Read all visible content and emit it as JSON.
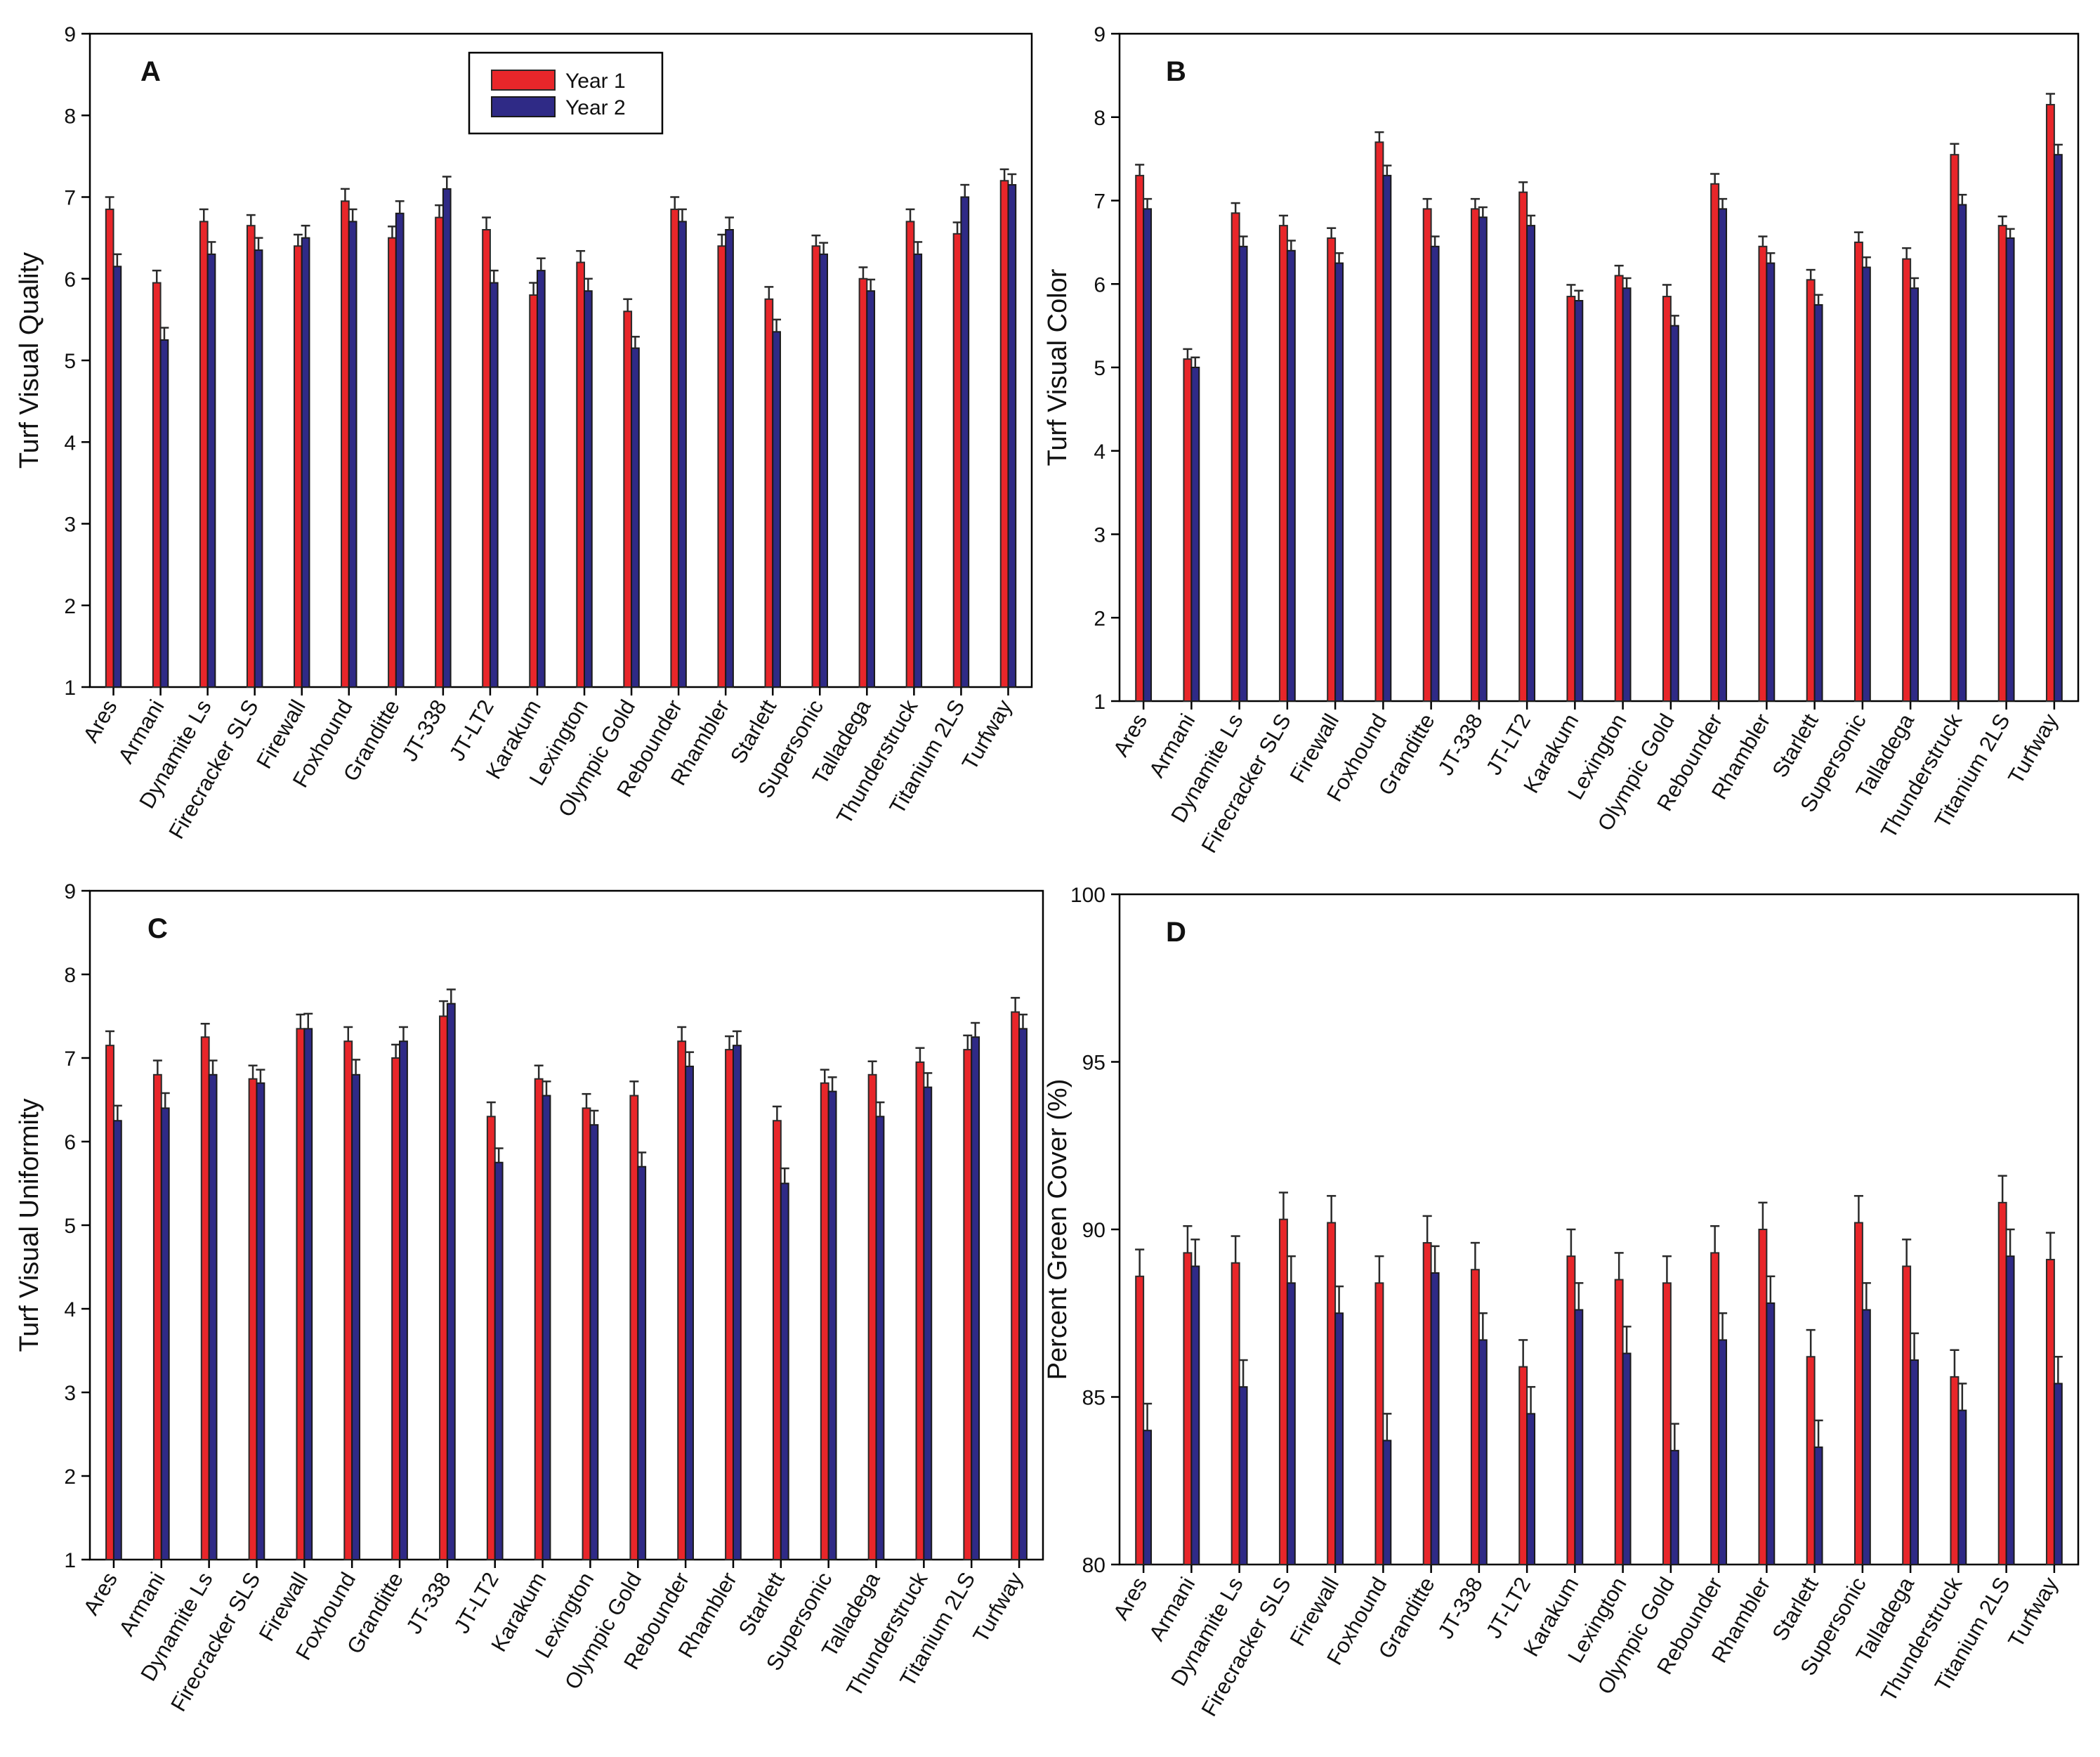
{
  "colors": {
    "year1": "#e8262a",
    "year2": "#2f2a86"
  },
  "chart_data": [
    {
      "type": "bar",
      "panel": "A",
      "ylabel": "Turf Visual Quality",
      "ylim": [
        1,
        9
      ],
      "yticks": [
        1,
        2,
        3,
        4,
        5,
        6,
        7,
        8,
        9
      ],
      "legend": {
        "position": "top-center",
        "entries": [
          "Year 1",
          "Year 2"
        ]
      },
      "categories": [
        "Ares",
        "Armani",
        "Dynamite Ls",
        "Firecracker SLS",
        "Firewall",
        "Foxhound",
        "Granditte",
        "JT-338",
        "JT-LT2",
        "Karakum",
        "Lexington",
        "Olympic Gold",
        "Rebounder",
        "Rhambler",
        "Starlett",
        "Supersonic",
        "Talladega",
        "Thunderstruck",
        "Titanium 2LS",
        "Turfway"
      ],
      "series": [
        {
          "name": "Year 1",
          "values": [
            6.85,
            5.95,
            6.7,
            6.65,
            6.4,
            6.95,
            6.5,
            6.75,
            6.6,
            5.8,
            6.2,
            5.6,
            6.85,
            6.4,
            5.75,
            6.4,
            6.0,
            6.7,
            6.55,
            7.2
          ],
          "errors": [
            0.15,
            0.15,
            0.15,
            0.13,
            0.14,
            0.15,
            0.14,
            0.15,
            0.15,
            0.15,
            0.14,
            0.15,
            0.15,
            0.14,
            0.15,
            0.13,
            0.14,
            0.15,
            0.14,
            0.14
          ]
        },
        {
          "name": "Year 2",
          "values": [
            6.15,
            5.25,
            6.3,
            6.35,
            6.5,
            6.7,
            6.8,
            7.1,
            5.95,
            6.1,
            5.85,
            5.15,
            6.7,
            6.6,
            5.35,
            6.3,
            5.85,
            6.3,
            7.0,
            7.15
          ],
          "errors": [
            0.15,
            0.15,
            0.15,
            0.15,
            0.15,
            0.15,
            0.15,
            0.15,
            0.15,
            0.15,
            0.15,
            0.14,
            0.15,
            0.15,
            0.15,
            0.14,
            0.14,
            0.15,
            0.15,
            0.13
          ]
        }
      ]
    },
    {
      "type": "bar",
      "panel": "B",
      "ylabel": "Turf Visual Color",
      "ylim": [
        1,
        9
      ],
      "yticks": [
        1,
        2,
        3,
        4,
        5,
        6,
        7,
        8,
        9
      ],
      "categories": [
        "Ares",
        "Armani",
        "Dynamite Ls",
        "Firecracker SLS",
        "Firewall",
        "Foxhound",
        "Granditte",
        "JT-338",
        "JT-LT2",
        "Karakum",
        "Lexington",
        "Olympic Gold",
        "Rebounder",
        "Rhambler",
        "Starlett",
        "Supersonic",
        "Talladega",
        "Thunderstruck",
        "Titanium 2LS",
        "Turfway"
      ],
      "series": [
        {
          "name": "Year 1",
          "values": [
            7.3,
            5.1,
            6.85,
            6.7,
            6.55,
            7.7,
            6.9,
            6.9,
            7.1,
            5.85,
            6.1,
            5.85,
            7.2,
            6.45,
            6.05,
            6.5,
            6.3,
            7.55,
            6.7,
            8.15
          ],
          "errors": [
            0.13,
            0.12,
            0.12,
            0.12,
            0.12,
            0.12,
            0.12,
            0.12,
            0.12,
            0.14,
            0.12,
            0.14,
            0.12,
            0.12,
            0.12,
            0.12,
            0.13,
            0.13,
            0.11,
            0.13
          ]
        },
        {
          "name": "Year 2",
          "values": [
            6.9,
            5.0,
            6.45,
            6.4,
            6.25,
            7.3,
            6.45,
            6.8,
            6.7,
            5.8,
            5.95,
            5.5,
            6.9,
            6.25,
            5.75,
            6.2,
            5.95,
            6.95,
            6.55,
            7.55
          ],
          "errors": [
            0.12,
            0.12,
            0.12,
            0.12,
            0.12,
            0.12,
            0.12,
            0.12,
            0.12,
            0.12,
            0.12,
            0.12,
            0.12,
            0.12,
            0.12,
            0.12,
            0.12,
            0.12,
            0.11,
            0.12
          ]
        }
      ]
    },
    {
      "type": "bar",
      "panel": "C",
      "ylabel": "Turf Visual Uniformity",
      "ylim": [
        1,
        9
      ],
      "yticks": [
        1,
        2,
        3,
        4,
        5,
        6,
        7,
        8,
        9
      ],
      "categories": [
        "Ares",
        "Armani",
        "Dynamite Ls",
        "Firecracker SLS",
        "Firewall",
        "Foxhound",
        "Granditte",
        "JT-338",
        "JT-LT2",
        "Karakum",
        "Lexington",
        "Olympic Gold",
        "Rebounder",
        "Rhambler",
        "Starlett",
        "Supersonic",
        "Talladega",
        "Thunderstruck",
        "Titanium 2LS",
        "Turfway"
      ],
      "series": [
        {
          "name": "Year 1",
          "values": [
            7.15,
            6.8,
            7.25,
            6.75,
            7.35,
            7.2,
            7.0,
            7.5,
            6.3,
            6.75,
            6.4,
            6.55,
            7.2,
            7.1,
            6.25,
            6.7,
            6.8,
            6.95,
            7.1,
            7.55
          ],
          "errors": [
            0.17,
            0.17,
            0.16,
            0.16,
            0.17,
            0.17,
            0.16,
            0.18,
            0.17,
            0.16,
            0.17,
            0.17,
            0.17,
            0.16,
            0.17,
            0.16,
            0.16,
            0.17,
            0.17,
            0.17
          ]
        },
        {
          "name": "Year 2",
          "values": [
            6.25,
            6.4,
            6.8,
            6.7,
            7.35,
            6.8,
            7.2,
            7.65,
            5.75,
            6.55,
            6.2,
            5.7,
            6.9,
            7.15,
            5.5,
            6.6,
            6.3,
            6.65,
            7.25,
            7.35
          ],
          "errors": [
            0.18,
            0.18,
            0.17,
            0.16,
            0.18,
            0.18,
            0.17,
            0.17,
            0.17,
            0.17,
            0.17,
            0.17,
            0.17,
            0.17,
            0.18,
            0.17,
            0.17,
            0.17,
            0.17,
            0.17
          ]
        }
      ]
    },
    {
      "type": "bar",
      "panel": "D",
      "ylabel": "Percent Green Cover (%)",
      "ylim": [
        80,
        100
      ],
      "yticks": [
        80,
        85,
        90,
        95,
        100
      ],
      "categories": [
        "Ares",
        "Armani",
        "Dynamite Ls",
        "Firecracker SLS",
        "Firewall",
        "Foxhound",
        "Granditte",
        "JT-338",
        "JT-LT2",
        "Karakum",
        "Lexington",
        "Olympic Gold",
        "Rebounder",
        "Rhambler",
        "Starlett",
        "Supersonic",
        "Talladega",
        "Thunderstruck",
        "Titanium 2LS",
        "Turfway"
      ],
      "series": [
        {
          "name": "Year 1",
          "values": [
            88.6,
            89.3,
            89.0,
            90.3,
            90.2,
            88.4,
            89.6,
            88.8,
            85.9,
            89.2,
            88.5,
            88.4,
            89.3,
            90.0,
            86.2,
            90.2,
            88.9,
            85.6,
            90.8,
            89.1
          ],
          "errors": [
            0.8,
            0.8,
            0.8,
            0.8,
            0.8,
            0.8,
            0.8,
            0.8,
            0.8,
            0.8,
            0.8,
            0.8,
            0.8,
            0.8,
            0.8,
            0.8,
            0.8,
            0.8,
            0.8,
            0.8
          ]
        },
        {
          "name": "Year 2",
          "values": [
            84.0,
            88.9,
            85.3,
            88.4,
            87.5,
            83.7,
            88.7,
            86.7,
            84.5,
            87.6,
            86.3,
            83.4,
            86.7,
            87.8,
            83.5,
            87.6,
            86.1,
            84.6,
            89.2,
            85.4
          ],
          "errors": [
            0.8,
            0.8,
            0.8,
            0.8,
            0.8,
            0.8,
            0.8,
            0.8,
            0.8,
            0.8,
            0.8,
            0.8,
            0.8,
            0.8,
            0.8,
            0.8,
            0.8,
            0.8,
            0.8,
            0.8
          ]
        }
      ]
    }
  ]
}
